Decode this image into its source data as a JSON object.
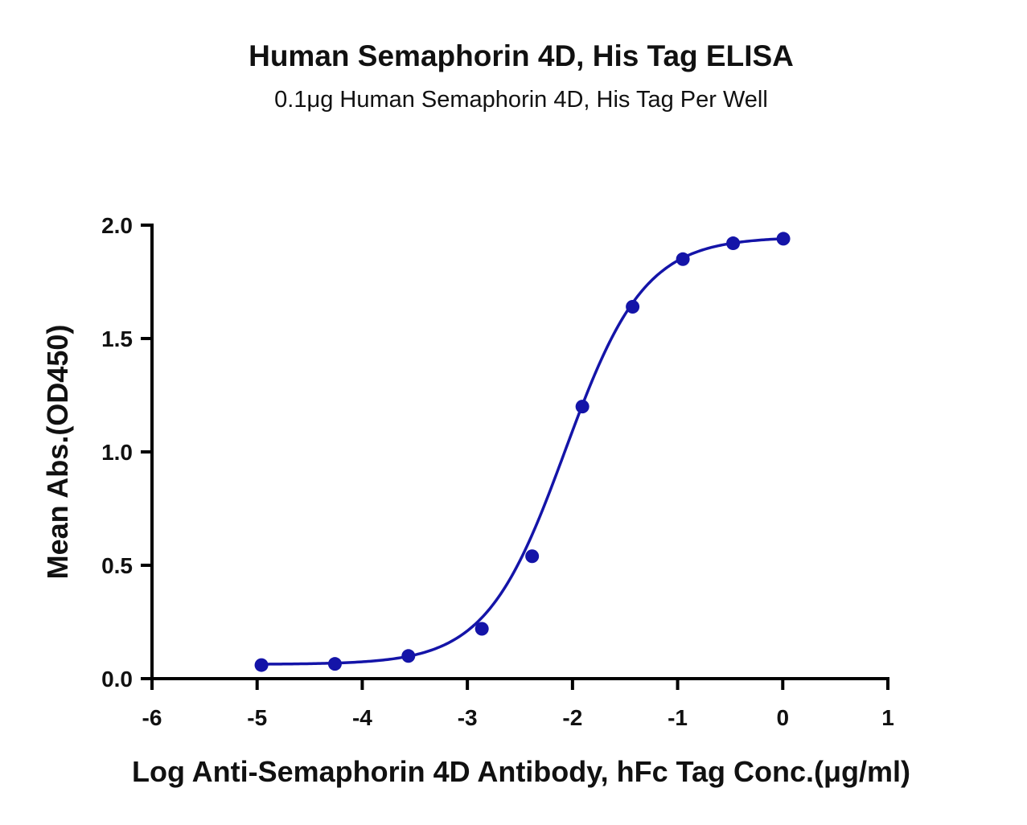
{
  "chart_data": {
    "type": "scatter",
    "title": "Human Semaphorin 4D, His Tag ELISA",
    "subtitle": "0.1μg Human Semaphorin 4D,  His Tag Per Well",
    "xlabel": "Log Anti-Semaphorin 4D Antibody, hFc Tag Conc.(μg/ml)",
    "ylabel": "Mean Abs.(OD450)",
    "xlim": [
      -6,
      1
    ],
    "ylim": [
      0,
      2.0
    ],
    "x_ticks": [
      "-6",
      "-5",
      "-4",
      "-3",
      "-2",
      "-1",
      "0",
      "1"
    ],
    "y_ticks": [
      "0.0",
      "0.5",
      "1.0",
      "1.5",
      "2.0"
    ],
    "grid": false,
    "color": "#1414a8",
    "series": [
      {
        "x": [
          -4.959,
          -4.26,
          -3.561,
          -2.862,
          -2.384,
          -1.906,
          -1.428,
          -0.95,
          -0.472,
          0.006
        ],
        "y": [
          0.06,
          0.065,
          0.1,
          0.22,
          0.54,
          1.2,
          1.64,
          1.85,
          1.92,
          1.94
        ]
      }
    ],
    "fit": {
      "type": "4PL",
      "bottom": 0.063,
      "top": 1.948,
      "log_ec50": -2.07,
      "hill_slope": 1.15
    }
  }
}
